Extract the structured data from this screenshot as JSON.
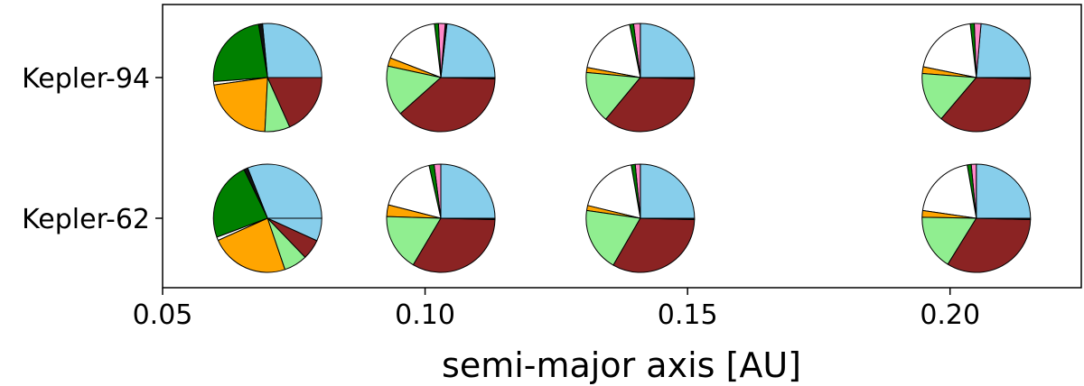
{
  "chart_data": {
    "type": "pie",
    "xlabel": "semi-major axis [AU]",
    "ylabel": "",
    "xlim": [
      0.05,
      0.225
    ],
    "xticks": [
      {
        "value": 0.05,
        "label": "0.05"
      },
      {
        "value": 0.1,
        "label": "0.10"
      },
      {
        "value": 0.15,
        "label": "0.15"
      },
      {
        "value": 0.2,
        "label": "0.20"
      }
    ],
    "rows": [
      {
        "label": "Kepler-94",
        "pies": [
          {
            "a": 0.07,
            "slices": [
              {
                "color": "#87ceeb",
                "fraction": 0.265
              },
              {
                "color": "#111111",
                "fraction": 0.012
              },
              {
                "color": "#008000",
                "fraction": 0.235
              },
              {
                "color": "#ffffff",
                "fraction": 0.01
              },
              {
                "color": "#ffa500",
                "fraction": 0.22
              },
              {
                "color": "#90ee90",
                "fraction": 0.075
              },
              {
                "color": "#8b2323",
                "fraction": 0.183
              }
            ]
          },
          {
            "a": 0.103,
            "slices": [
              {
                "color": "#87ceeb",
                "fraction": 0.232
              },
              {
                "color": "#111111",
                "fraction": 0.005
              },
              {
                "color": "#ff88c8",
                "fraction": 0.02
              },
              {
                "color": "#008000",
                "fraction": 0.012
              },
              {
                "color": "#ffffff",
                "fraction": 0.172
              },
              {
                "color": "#ffa500",
                "fraction": 0.025
              },
              {
                "color": "#90ee90",
                "fraction": 0.15
              },
              {
                "color": "#8b2323",
                "fraction": 0.38
              },
              {
                "color": "#111111",
                "fraction": 0.004
              }
            ]
          },
          {
            "a": 0.141,
            "slices": [
              {
                "color": "#87ceeb",
                "fraction": 0.25
              },
              {
                "color": "#ff88c8",
                "fraction": 0.02
              },
              {
                "color": "#008000",
                "fraction": 0.012
              },
              {
                "color": "#ffffff",
                "fraction": 0.188
              },
              {
                "color": "#ffa500",
                "fraction": 0.015
              },
              {
                "color": "#90ee90",
                "fraction": 0.155
              },
              {
                "color": "#8b2323",
                "fraction": 0.356
              },
              {
                "color": "#111111",
                "fraction": 0.004
              }
            ]
          },
          {
            "a": 0.205,
            "slices": [
              {
                "color": "#87ceeb",
                "fraction": 0.236
              },
              {
                "color": "#ff88c8",
                "fraction": 0.02
              },
              {
                "color": "#008000",
                "fraction": 0.012
              },
              {
                "color": "#ffffff",
                "fraction": 0.2
              },
              {
                "color": "#ffa500",
                "fraction": 0.02
              },
              {
                "color": "#90ee90",
                "fraction": 0.15
              },
              {
                "color": "#8b2323",
                "fraction": 0.358
              },
              {
                "color": "#111111",
                "fraction": 0.004
              }
            ]
          }
        ]
      },
      {
        "label": "Kepler-62",
        "pies": [
          {
            "a": 0.07,
            "slices": [
              {
                "color": "#87ceeb",
                "fraction": 0.31
              },
              {
                "color": "#111111",
                "fraction": 0.012
              },
              {
                "color": "#008000",
                "fraction": 0.235
              },
              {
                "color": "#ffffff",
                "fraction": 0.01
              },
              {
                "color": "#ffa500",
                "fraction": 0.235
              },
              {
                "color": "#90ee90",
                "fraction": 0.07
              },
              {
                "color": "#8b2323",
                "fraction": 0.06
              },
              {
                "color": "#87ceeb",
                "fraction": 0.068
              }
            ]
          },
          {
            "a": 0.103,
            "slices": [
              {
                "color": "#87ceeb",
                "fraction": 0.25
              },
              {
                "color": "#ff88c8",
                "fraction": 0.02
              },
              {
                "color": "#008000",
                "fraction": 0.015
              },
              {
                "color": "#ffffff",
                "fraction": 0.175
              },
              {
                "color": "#ffa500",
                "fraction": 0.035
              },
              {
                "color": "#90ee90",
                "fraction": 0.17
              },
              {
                "color": "#8b2323",
                "fraction": 0.331
              },
              {
                "color": "#111111",
                "fraction": 0.004
              }
            ]
          },
          {
            "a": 0.141,
            "slices": [
              {
                "color": "#87ceeb",
                "fraction": 0.25
              },
              {
                "color": "#ff88c8",
                "fraction": 0.015
              },
              {
                "color": "#008000",
                "fraction": 0.012
              },
              {
                "color": "#ffffff",
                "fraction": 0.185
              },
              {
                "color": "#ffa500",
                "fraction": 0.015
              },
              {
                "color": "#90ee90",
                "fraction": 0.19
              },
              {
                "color": "#8b2323",
                "fraction": 0.329
              },
              {
                "color": "#111111",
                "fraction": 0.004
              }
            ]
          },
          {
            "a": 0.205,
            "slices": [
              {
                "color": "#87ceeb",
                "fraction": 0.25
              },
              {
                "color": "#ff88c8",
                "fraction": 0.015
              },
              {
                "color": "#008000",
                "fraction": 0.012
              },
              {
                "color": "#ffffff",
                "fraction": 0.2
              },
              {
                "color": "#ffa500",
                "fraction": 0.02
              },
              {
                "color": "#90ee90",
                "fraction": 0.165
              },
              {
                "color": "#8b2323",
                "fraction": 0.334
              },
              {
                "color": "#111111",
                "fraction": 0.004
              }
            ]
          }
        ]
      }
    ],
    "grid": false,
    "legend": "none"
  }
}
